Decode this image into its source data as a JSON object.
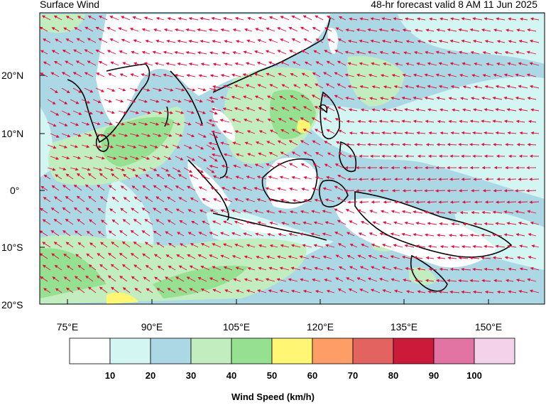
{
  "header": {
    "left_title": "Surface Wind",
    "right_title": "48-hr forecast valid 8 AM 11 Jun 2025"
  },
  "map": {
    "lat_labels": [
      "20°N",
      "10°N",
      "0°",
      "10°S",
      "20°S"
    ],
    "lon_labels": [
      "75°E",
      "90°E",
      "105°E",
      "120°E",
      "135°E",
      "150°E"
    ],
    "extent": {
      "lon_min": 70,
      "lon_max": 160,
      "lat_min": -20,
      "lat_max": 30
    },
    "arrow_color": "#e0103a"
  },
  "legend": {
    "title": "Wind Speed (km/h)",
    "tick_labels": [
      "10",
      "20",
      "30",
      "40",
      "50",
      "60",
      "70",
      "80",
      "90",
      "100"
    ],
    "colors": [
      "#ffffff",
      "#d4f6f2",
      "#acd8e6",
      "#c2edbe",
      "#96e191",
      "#fff774",
      "#ff9d66",
      "#e2635f",
      "#cc1a3b",
      "#e174a2",
      "#f4d2ea"
    ]
  }
}
